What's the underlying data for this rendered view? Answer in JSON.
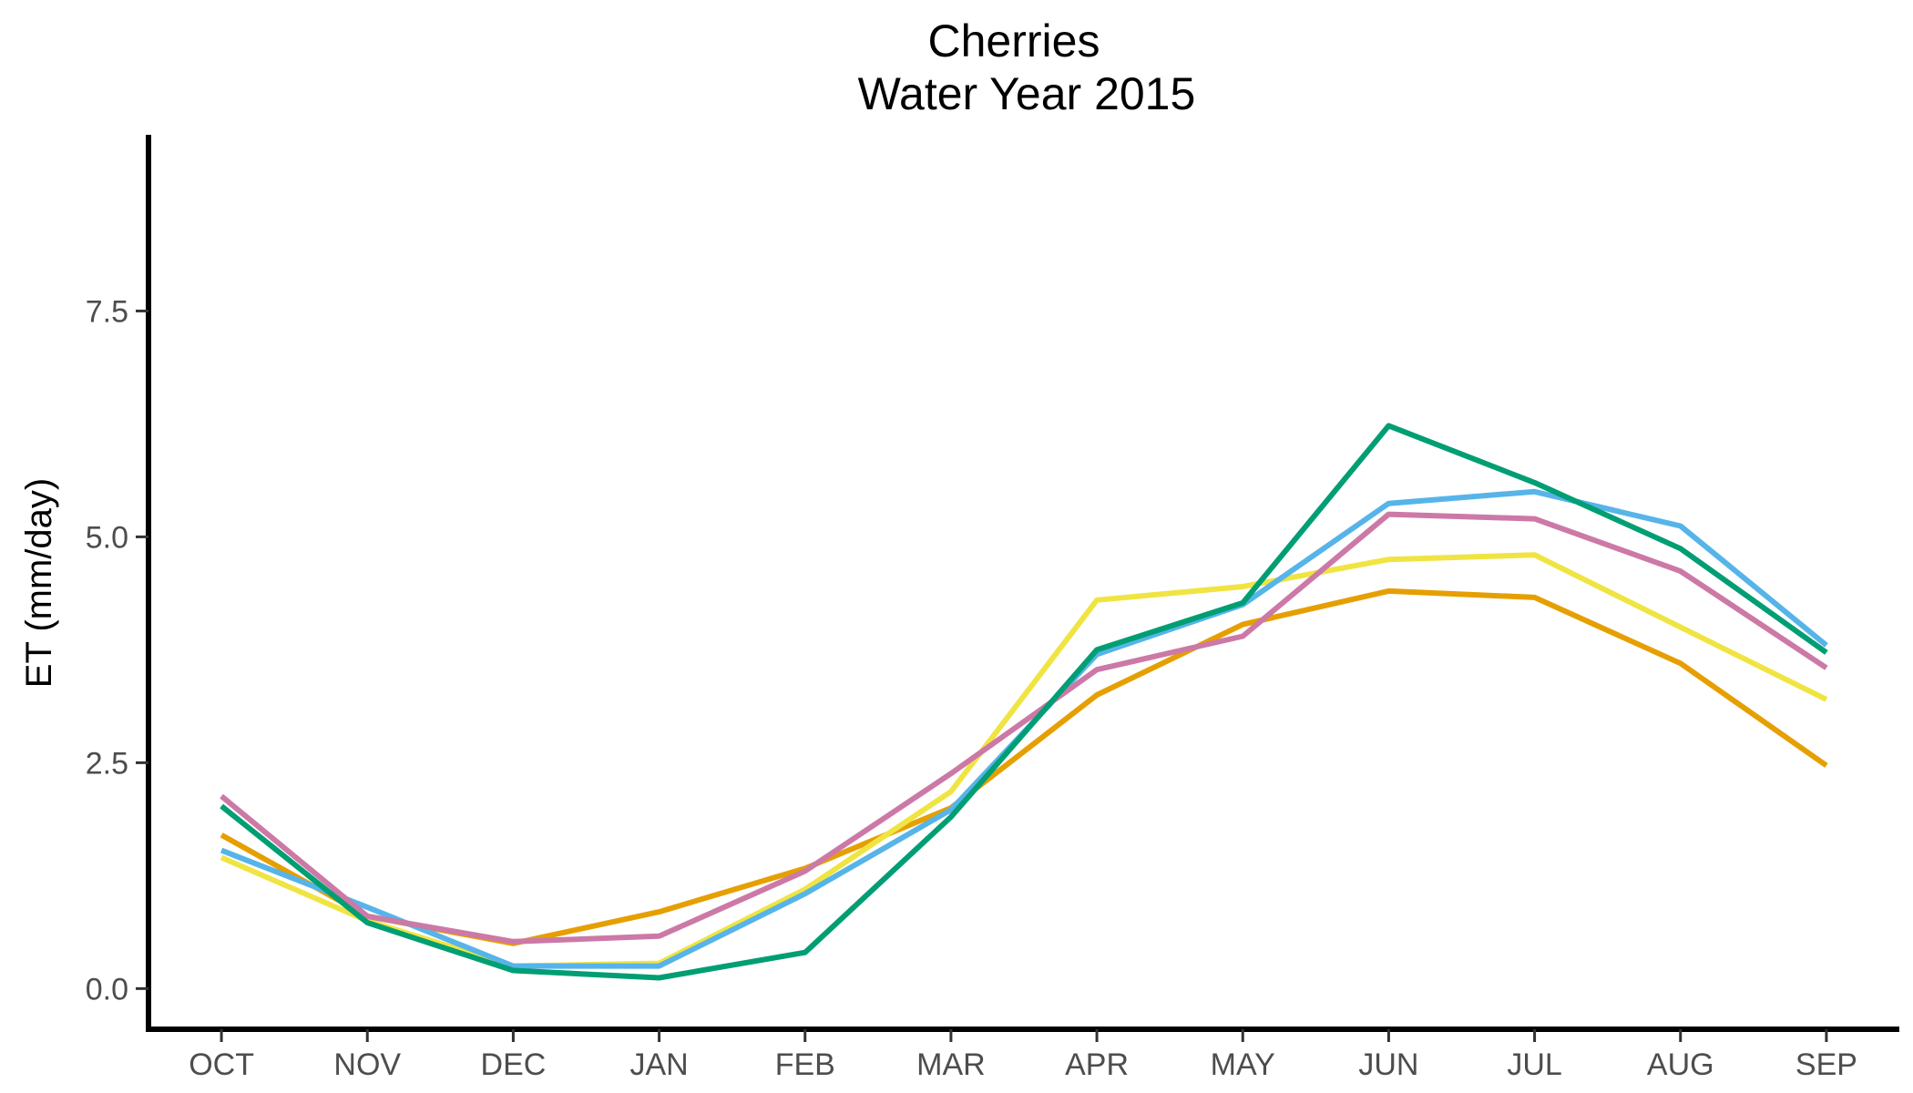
{
  "chart_data": {
    "type": "line",
    "title": "Cherries",
    "subtitle": "Water Year 2015",
    "xlabel": "",
    "ylabel": "ET (mm/day)",
    "categories": [
      "OCT",
      "NOV",
      "DEC",
      "JAN",
      "FEB",
      "MAR",
      "APR",
      "MAY",
      "JUN",
      "JUL",
      "AUG",
      "SEP"
    ],
    "ylim": [
      -0.45,
      9.45
    ],
    "yticks": [
      0.0,
      2.5,
      5.0,
      7.5
    ],
    "ytick_labels": [
      "0.0",
      "2.5",
      "5.0",
      "7.5"
    ],
    "grid": false,
    "legend": "none",
    "series": [
      {
        "color": "#E69F00",
        "values": [
          1.7,
          0.8,
          0.5,
          0.85,
          1.33,
          2.0,
          3.25,
          4.03,
          4.4,
          4.33,
          3.6,
          2.47
        ]
      },
      {
        "color": "#F0E442",
        "values": [
          1.45,
          0.75,
          0.25,
          0.28,
          1.1,
          2.18,
          4.3,
          4.45,
          4.75,
          4.8,
          4.0,
          3.2
        ]
      },
      {
        "color": "#56B4E9",
        "values": [
          1.53,
          0.9,
          0.25,
          0.25,
          1.05,
          1.98,
          3.7,
          4.25,
          5.37,
          5.5,
          5.12,
          3.8
        ]
      },
      {
        "color": "#CC79A7",
        "values": [
          2.13,
          0.8,
          0.52,
          0.58,
          1.3,
          2.38,
          3.53,
          3.9,
          5.25,
          5.2,
          4.62,
          3.55
        ]
      },
      {
        "color": "#009E73",
        "values": [
          2.02,
          0.73,
          0.2,
          0.12,
          0.4,
          1.9,
          3.75,
          4.27,
          6.23,
          5.6,
          4.87,
          3.72
        ]
      }
    ]
  }
}
